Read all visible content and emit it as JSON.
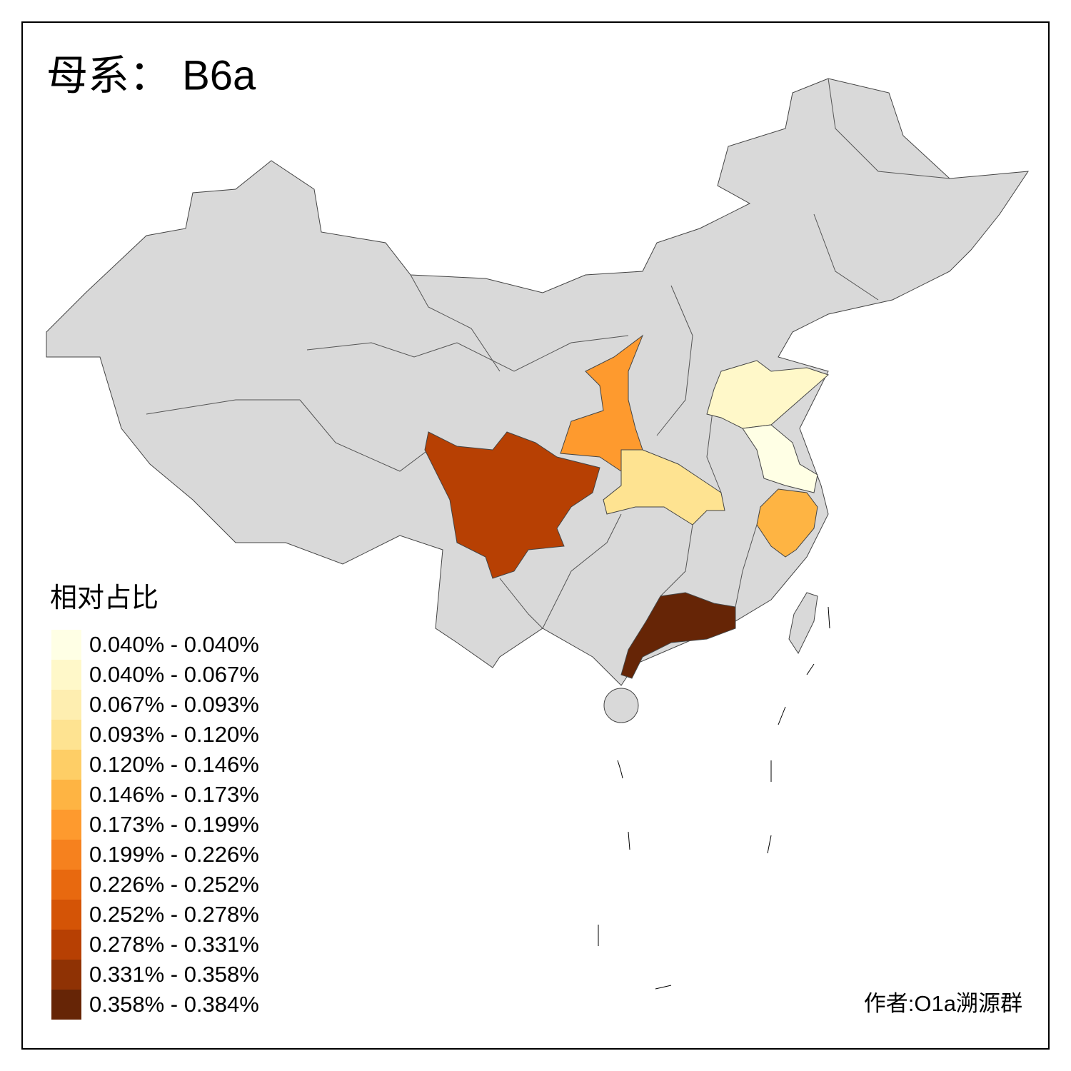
{
  "title": "母系： B6a",
  "legend": {
    "title": "相对占比",
    "items": [
      {
        "label": "0.040% - 0.040%",
        "color": "#ffffe5"
      },
      {
        "label": "0.040% - 0.067%",
        "color": "#fff8c9"
      },
      {
        "label": "0.067% - 0.093%",
        "color": "#feeeb0"
      },
      {
        "label": "0.093% - 0.120%",
        "color": "#fee391"
      },
      {
        "label": "0.120% - 0.146%",
        "color": "#fece66"
      },
      {
        "label": "0.146% - 0.173%",
        "color": "#feb443"
      },
      {
        "label": "0.173% - 0.199%",
        "color": "#fe9a2e"
      },
      {
        "label": "0.199% - 0.226%",
        "color": "#f6811e"
      },
      {
        "label": "0.226% - 0.252%",
        "color": "#e8690f"
      },
      {
        "label": "0.252% - 0.278%",
        "color": "#d45406"
      },
      {
        "label": "0.278% - 0.331%",
        "color": "#b74003"
      },
      {
        "label": "0.331% - 0.358%",
        "color": "#8f3204"
      },
      {
        "label": "0.358% - 0.384%",
        "color": "#662506"
      }
    ]
  },
  "author": "作者:O1a溯源群"
}
